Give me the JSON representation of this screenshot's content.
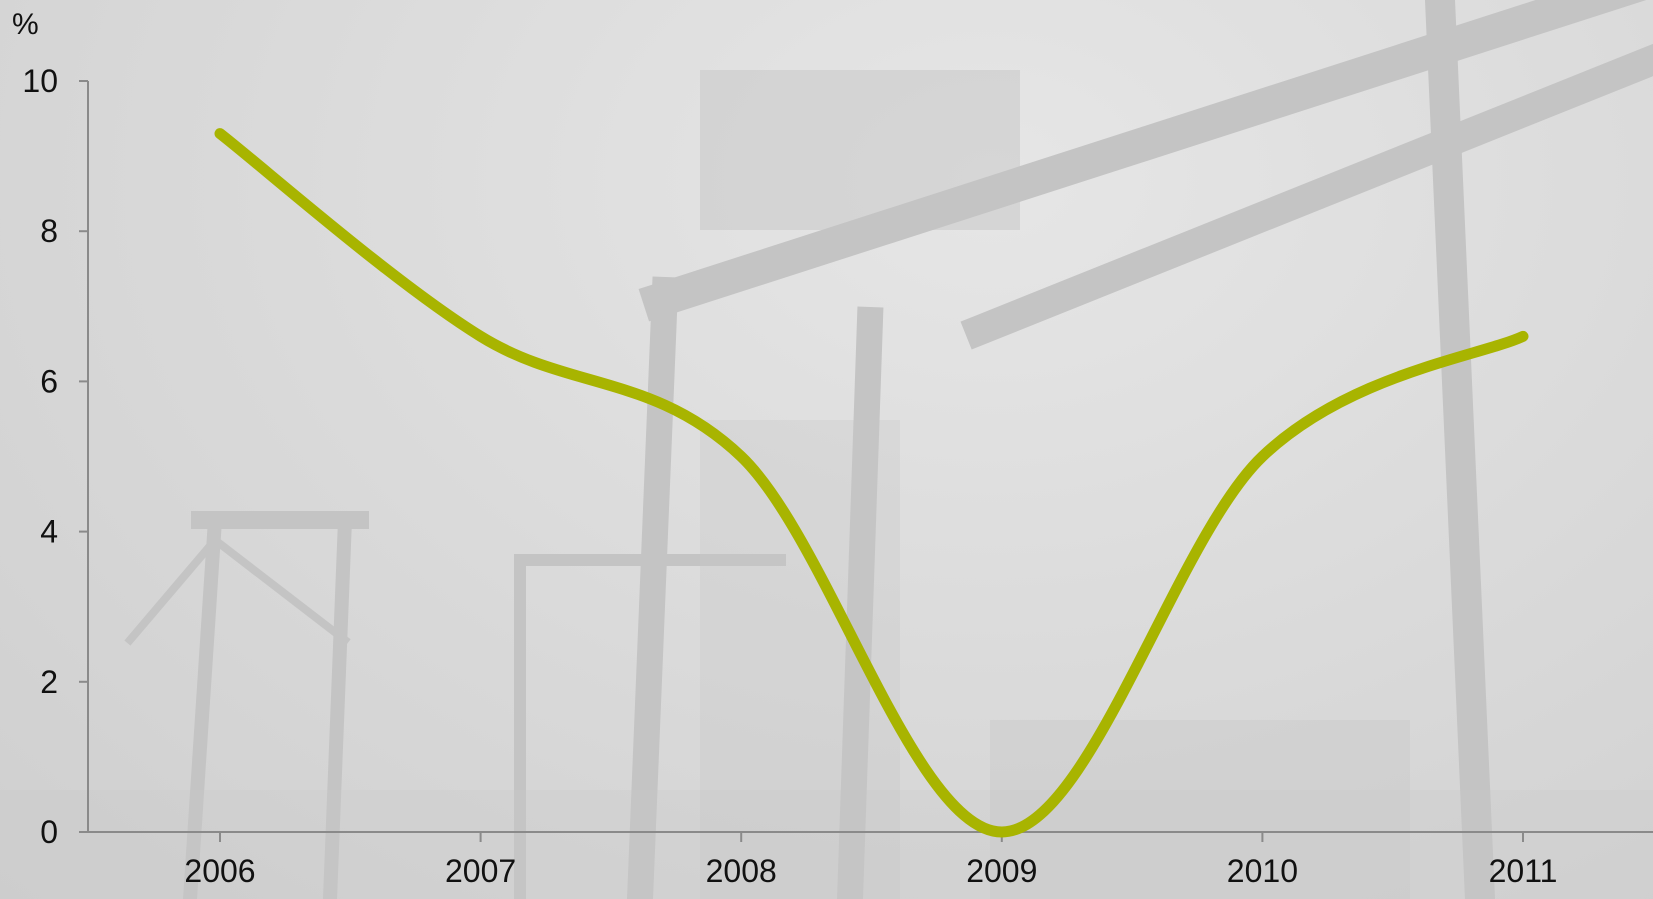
{
  "chart_data": {
    "type": "line",
    "title": "",
    "xlabel": "",
    "ylabel": "%",
    "x": [
      "2006",
      "2007",
      "2008",
      "2009",
      "2010",
      "2011"
    ],
    "series": [
      {
        "values": [
          9.3,
          6.6,
          5.0,
          0.0,
          5.0,
          6.6
        ],
        "color": "#a8b400"
      }
    ],
    "ylim": [
      0,
      10
    ],
    "yticks": [
      "0",
      "2",
      "4",
      "6",
      "8",
      "10"
    ],
    "grid": false,
    "legend": "none",
    "background": "grayscale photo of container port cranes"
  }
}
